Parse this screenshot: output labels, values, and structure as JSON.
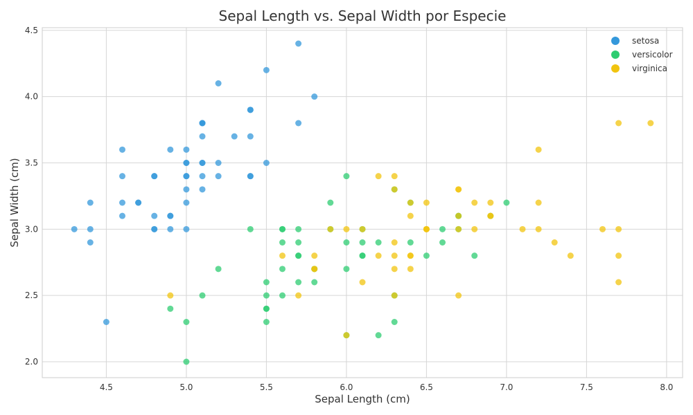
{
  "chart_data": {
    "type": "scatter",
    "title": "Sepal Length vs. Sepal Width por Especie",
    "xlabel": "Sepal Length (cm)",
    "ylabel": "Sepal Width (cm)",
    "xlim": [
      4.1,
      8.1
    ],
    "ylim": [
      1.88,
      4.52
    ],
    "x_ticks": [
      "4.5",
      "5.0",
      "5.5",
      "6.0",
      "6.5",
      "7.0",
      "7.5",
      "8.0"
    ],
    "y_ticks": [
      "2.0",
      "2.5",
      "3.0",
      "3.5",
      "4.0",
      "4.5"
    ],
    "grid": true,
    "legend_position": "top-right",
    "series": [
      {
        "name": "setosa",
        "color": "#3498db",
        "points": [
          [
            5.1,
            3.5
          ],
          [
            4.9,
            3.0
          ],
          [
            4.7,
            3.2
          ],
          [
            4.6,
            3.1
          ],
          [
            5.0,
            3.6
          ],
          [
            5.4,
            3.9
          ],
          [
            4.6,
            3.4
          ],
          [
            5.0,
            3.4
          ],
          [
            4.4,
            2.9
          ],
          [
            4.9,
            3.1
          ],
          [
            5.4,
            3.7
          ],
          [
            4.8,
            3.4
          ],
          [
            4.8,
            3.0
          ],
          [
            4.3,
            3.0
          ],
          [
            5.8,
            4.0
          ],
          [
            5.7,
            4.4
          ],
          [
            5.4,
            3.9
          ],
          [
            5.1,
            3.5
          ],
          [
            5.7,
            3.8
          ],
          [
            5.1,
            3.8
          ],
          [
            5.4,
            3.4
          ],
          [
            5.1,
            3.7
          ],
          [
            4.6,
            3.6
          ],
          [
            5.1,
            3.3
          ],
          [
            4.8,
            3.4
          ],
          [
            5.0,
            3.0
          ],
          [
            5.0,
            3.4
          ],
          [
            5.2,
            3.5
          ],
          [
            5.2,
            3.4
          ],
          [
            4.7,
            3.2
          ],
          [
            4.8,
            3.1
          ],
          [
            5.4,
            3.4
          ],
          [
            5.2,
            4.1
          ],
          [
            5.5,
            4.2
          ],
          [
            4.9,
            3.1
          ],
          [
            5.0,
            3.2
          ],
          [
            5.5,
            3.5
          ],
          [
            4.9,
            3.6
          ],
          [
            4.4,
            3.0
          ],
          [
            5.1,
            3.4
          ],
          [
            5.0,
            3.5
          ],
          [
            4.5,
            2.3
          ],
          [
            4.4,
            3.2
          ],
          [
            5.0,
            3.5
          ],
          [
            5.1,
            3.8
          ],
          [
            4.8,
            3.0
          ],
          [
            5.1,
            3.8
          ],
          [
            4.6,
            3.2
          ],
          [
            5.3,
            3.7
          ],
          [
            5.0,
            3.3
          ]
        ]
      },
      {
        "name": "versicolor",
        "color": "#2ecc71",
        "points": [
          [
            7.0,
            3.2
          ],
          [
            6.4,
            3.2
          ],
          [
            6.9,
            3.1
          ],
          [
            5.5,
            2.3
          ],
          [
            6.5,
            2.8
          ],
          [
            5.7,
            2.8
          ],
          [
            6.3,
            3.3
          ],
          [
            4.9,
            2.4
          ],
          [
            6.6,
            2.9
          ],
          [
            5.2,
            2.7
          ],
          [
            5.0,
            2.0
          ],
          [
            5.9,
            3.0
          ],
          [
            6.0,
            2.2
          ],
          [
            6.1,
            2.9
          ],
          [
            5.6,
            2.9
          ],
          [
            6.7,
            3.1
          ],
          [
            5.6,
            3.0
          ],
          [
            5.8,
            2.7
          ],
          [
            6.2,
            2.2
          ],
          [
            5.6,
            2.5
          ],
          [
            5.9,
            3.2
          ],
          [
            6.1,
            2.8
          ],
          [
            6.3,
            2.5
          ],
          [
            6.1,
            2.8
          ],
          [
            6.4,
            2.9
          ],
          [
            6.6,
            3.0
          ],
          [
            6.8,
            2.8
          ],
          [
            6.7,
            3.0
          ],
          [
            6.0,
            2.9
          ],
          [
            5.7,
            2.6
          ],
          [
            5.5,
            2.4
          ],
          [
            5.5,
            2.4
          ],
          [
            5.8,
            2.7
          ],
          [
            6.0,
            2.7
          ],
          [
            5.4,
            3.0
          ],
          [
            6.0,
            3.4
          ],
          [
            6.7,
            3.1
          ],
          [
            6.3,
            2.3
          ],
          [
            5.6,
            3.0
          ],
          [
            5.5,
            2.5
          ],
          [
            5.5,
            2.6
          ],
          [
            6.1,
            3.0
          ],
          [
            5.8,
            2.6
          ],
          [
            5.0,
            2.3
          ],
          [
            5.6,
            2.7
          ],
          [
            5.7,
            3.0
          ],
          [
            5.7,
            2.9
          ],
          [
            6.2,
            2.9
          ],
          [
            5.1,
            2.5
          ],
          [
            5.7,
            2.8
          ]
        ]
      },
      {
        "name": "virginica",
        "color": "#f1c40f",
        "points": [
          [
            6.3,
            3.3
          ],
          [
            5.8,
            2.7
          ],
          [
            7.1,
            3.0
          ],
          [
            6.3,
            2.9
          ],
          [
            6.5,
            3.0
          ],
          [
            7.6,
            3.0
          ],
          [
            4.9,
            2.5
          ],
          [
            7.3,
            2.9
          ],
          [
            6.7,
            2.5
          ],
          [
            7.2,
            3.6
          ],
          [
            6.5,
            3.2
          ],
          [
            6.4,
            2.7
          ],
          [
            6.8,
            3.0
          ],
          [
            5.7,
            2.5
          ],
          [
            5.8,
            2.8
          ],
          [
            6.4,
            3.2
          ],
          [
            6.5,
            3.0
          ],
          [
            7.7,
            3.8
          ],
          [
            7.7,
            2.6
          ],
          [
            6.0,
            2.2
          ],
          [
            6.9,
            3.2
          ],
          [
            5.6,
            2.8
          ],
          [
            7.7,
            2.8
          ],
          [
            6.3,
            2.7
          ],
          [
            6.7,
            3.3
          ],
          [
            7.2,
            3.2
          ],
          [
            6.2,
            2.8
          ],
          [
            6.1,
            3.0
          ],
          [
            6.4,
            2.8
          ],
          [
            7.2,
            3.0
          ],
          [
            7.4,
            2.8
          ],
          [
            7.9,
            3.8
          ],
          [
            6.4,
            2.8
          ],
          [
            6.3,
            2.8
          ],
          [
            6.1,
            2.6
          ],
          [
            7.7,
            3.0
          ],
          [
            6.3,
            3.4
          ],
          [
            6.4,
            3.1
          ],
          [
            6.0,
            3.0
          ],
          [
            6.9,
            3.1
          ],
          [
            6.7,
            3.1
          ],
          [
            6.9,
            3.1
          ],
          [
            5.8,
            2.7
          ],
          [
            6.8,
            3.2
          ],
          [
            6.7,
            3.3
          ],
          [
            6.7,
            3.0
          ],
          [
            6.3,
            2.5
          ],
          [
            6.5,
            3.0
          ],
          [
            6.2,
            3.4
          ],
          [
            5.9,
            3.0
          ]
        ]
      }
    ]
  }
}
